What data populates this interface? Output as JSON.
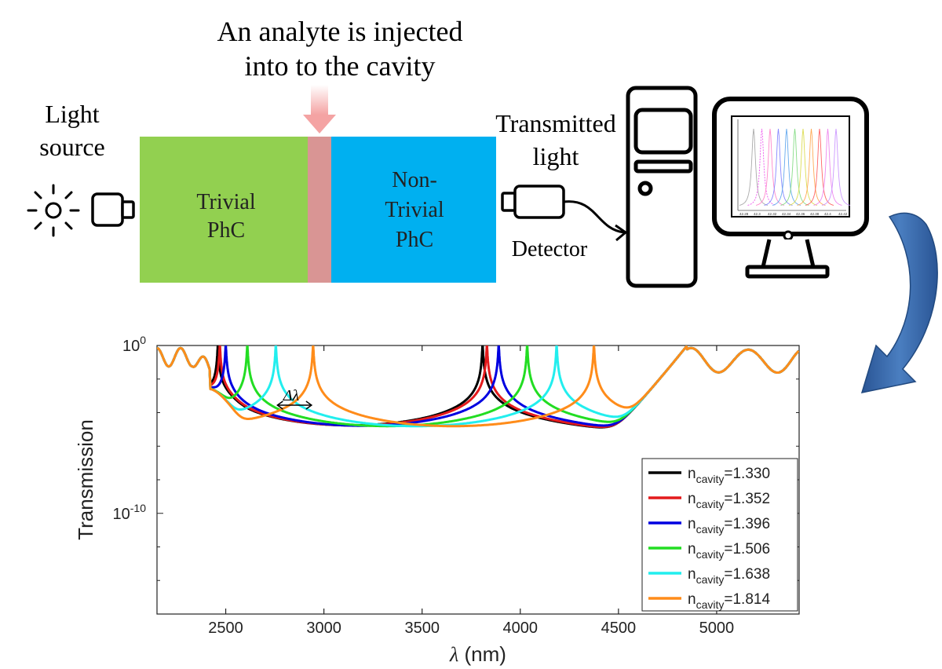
{
  "schematic": {
    "analyte_note_line1": "An analyte is injected",
    "analyte_note_line2": "into to the cavity",
    "light_source_line1": "Light",
    "light_source_line2": "source",
    "trivial_line1": "Trivial",
    "trivial_line2": "PhC",
    "nontrivial_line1": "Non-",
    "nontrivial_line2": "Trivial",
    "nontrivial_line3": "PhC",
    "transmitted_line1": "Transmitted",
    "transmitted_line2": "light",
    "detector_label": "Detector",
    "colors": {
      "trivial": "#92d050",
      "cavity": "#d99594",
      "nontrivial": "#00b0f0",
      "arrow": "#2e5597"
    }
  },
  "chart_data": {
    "type": "line",
    "xlabel_symbol": "λ",
    "xlabel_unit": " (nm)",
    "ylabel": "Transmission",
    "xlim": [
      2150,
      5420
    ],
    "ylim_log10": [
      -16,
      0
    ],
    "y_scale": "log",
    "x_ticks": [
      2500,
      3000,
      3500,
      4000,
      4500,
      5000
    ],
    "x_tick_labels": [
      "2500",
      "3000",
      "3500",
      "4000",
      "4500",
      "5000"
    ],
    "y_ticks": [
      {
        "base": "10",
        "exp": "0",
        "log10": 0
      },
      {
        "base": "10",
        "exp": "-10",
        "log10": -10
      }
    ],
    "annotation": "Δλ",
    "annotation_span_nm": [
      2755,
      2945
    ],
    "legend_position": "bottom-right",
    "series": [
      {
        "name": "n_cavity=1.330",
        "sub": "cavity",
        "value": "=1.330",
        "color": "#000000",
        "peaks": [
          2460,
          3808
        ]
      },
      {
        "name": "n_cavity=1.352",
        "sub": "cavity",
        "value": "=1.352",
        "color": "#e41a1c",
        "peaks": [
          2470,
          3830
        ]
      },
      {
        "name": "n_cavity=1.396",
        "sub": "cavity",
        "value": "=1.396",
        "color": "#0000e0",
        "peaks": [
          2500,
          3890
        ]
      },
      {
        "name": "n_cavity=1.506",
        "sub": "cavity",
        "value": "=1.506",
        "color": "#22dd22",
        "peaks": [
          2610,
          4035
        ]
      },
      {
        "name": "n_cavity=1.638",
        "sub": "cavity",
        "value": "=1.638",
        "color": "#22eeee",
        "peaks": [
          2755,
          4185
        ]
      },
      {
        "name": "n_cavity=1.814",
        "sub": "cavity",
        "value": "=1.814",
        "color": "#ff8c1a",
        "peaks": [
          2945,
          4375
        ]
      }
    ],
    "monitor_thumbnail_ticks": [
      "42.28",
      "42.3",
      "42.32",
      "42.34",
      "42.36",
      "42.38",
      "42.4",
      "42.42"
    ]
  }
}
